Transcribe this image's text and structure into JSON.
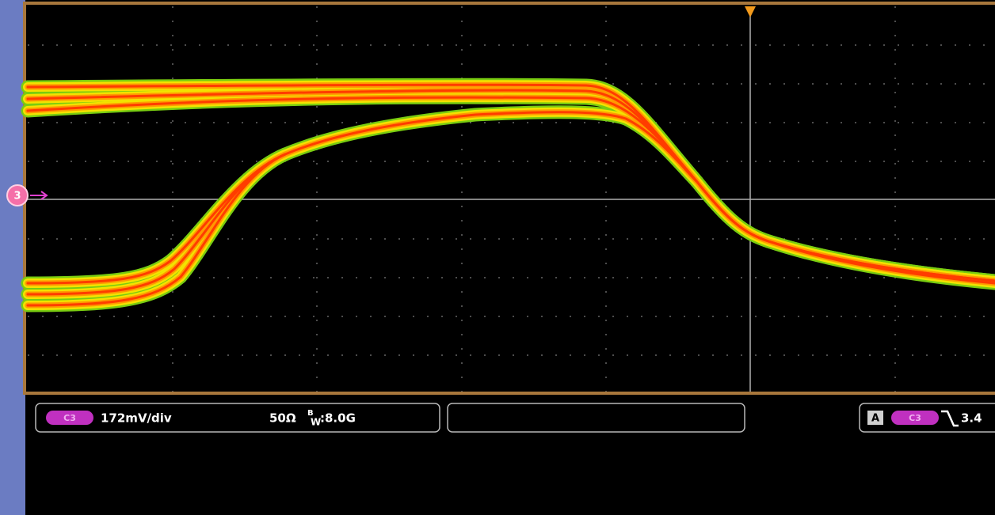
{
  "channel_marker": "3",
  "channel_info": {
    "badge": "C3",
    "scale": "172mV/div",
    "impedance": "50Ω",
    "bandwidth_superscript": "B",
    "bandwidth_subscript": "W",
    "bandwidth_value": ":8.0G"
  },
  "trigger_info": {
    "source_label": "A",
    "badge": "C3",
    "level": "3.4"
  }
}
